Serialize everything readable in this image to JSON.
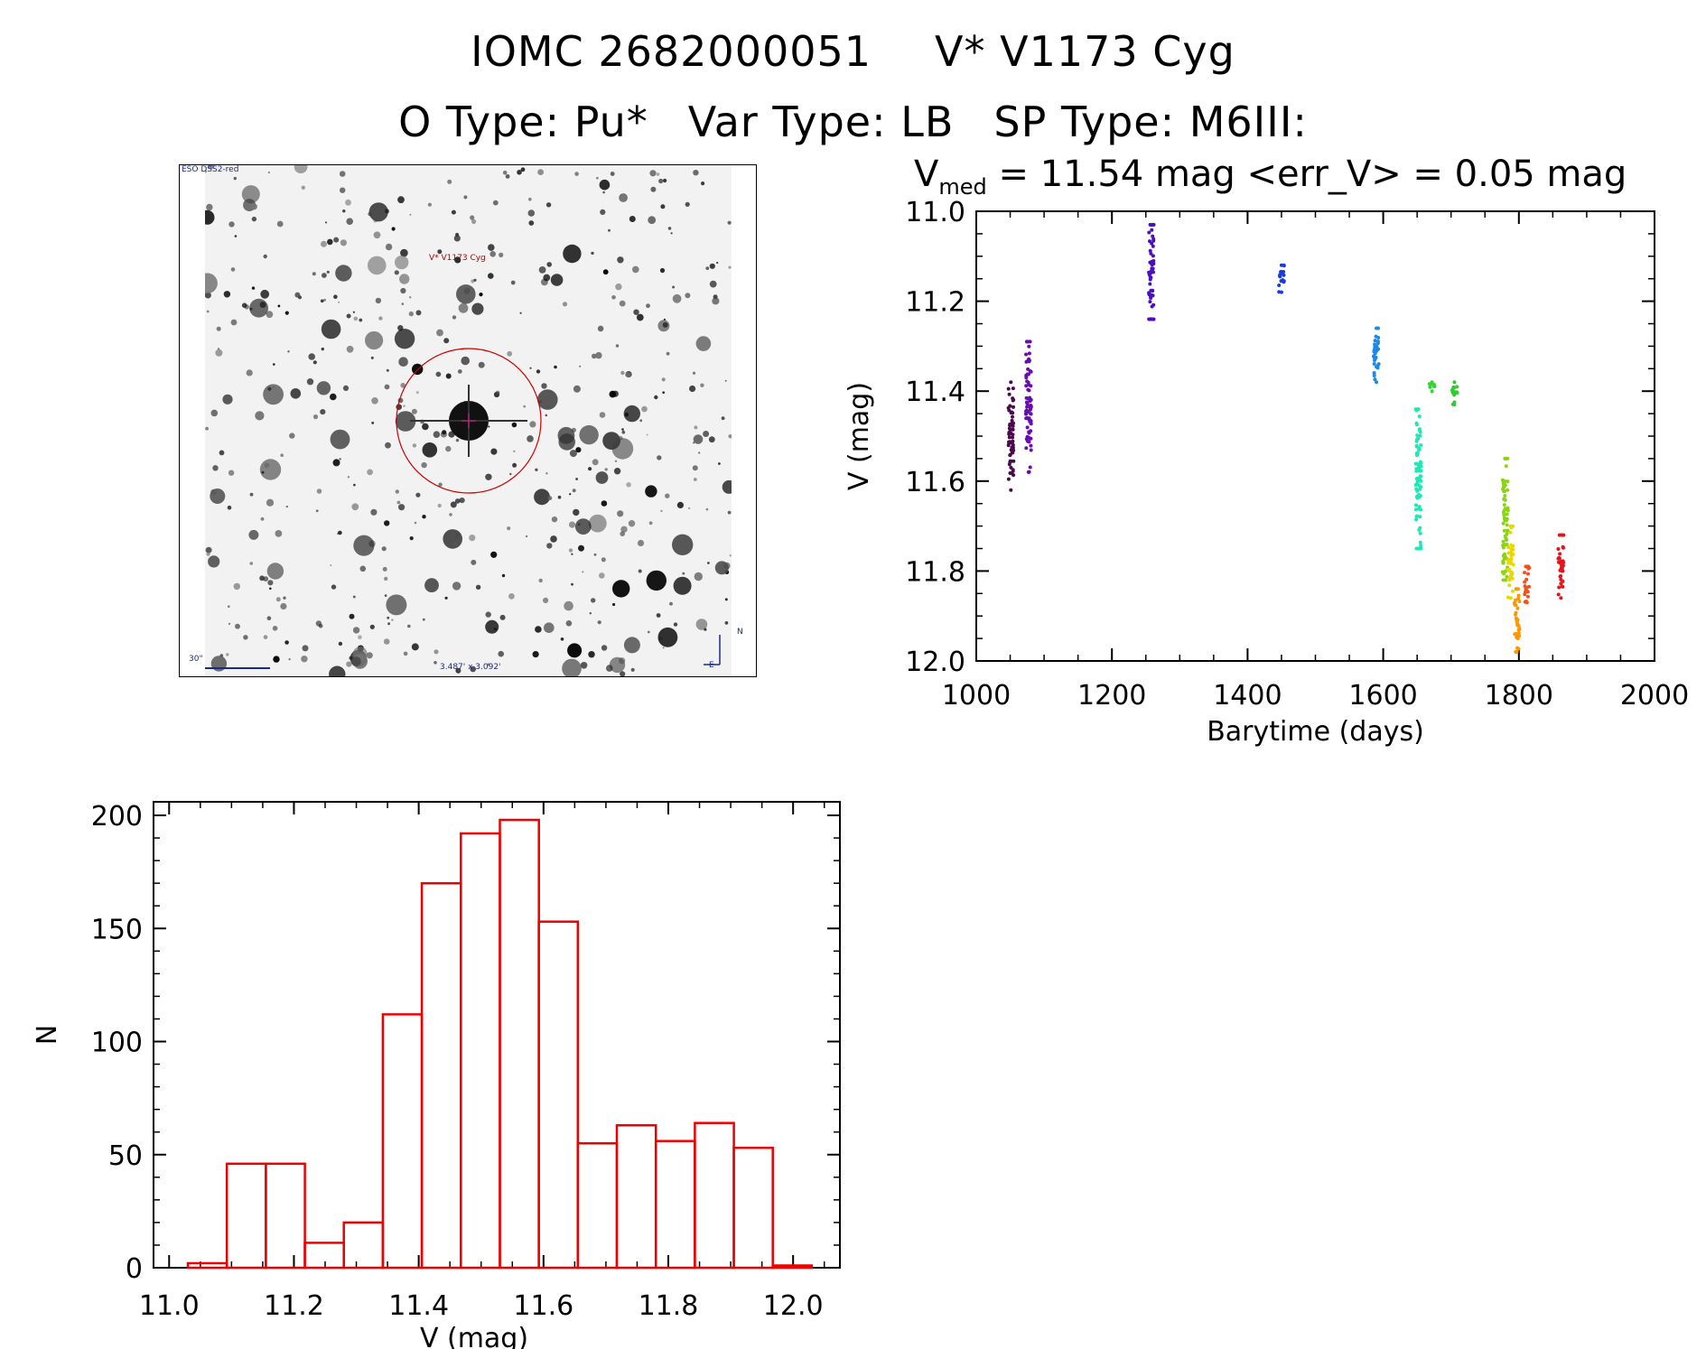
{
  "header": {
    "title_id": "IOMC 2682000051",
    "title_name": "V* V1173 Cyg",
    "otype": "O Type: Pu*",
    "vartype": "Var Type: LB",
    "sptype": "SP Type: M6III:"
  },
  "finder": {
    "corner_label": "ESO DSS2-red",
    "star_label": "V* V1173 Cyg",
    "scale_label": "30\"",
    "coords_label": "3.487' x 3.092'",
    "north_label": "N",
    "east_label": "E"
  },
  "lightcurve": {
    "subtitle_v": "V",
    "subtitle_sub": "med",
    "subtitle_rest": " = 11.54 mag <err_V> = 0.05 mag"
  },
  "chart_data": [
    {
      "type": "scatter",
      "xlabel": "Barytime (days)",
      "ylabel": "V (mag)",
      "xlim": [
        1000,
        2000
      ],
      "ylim": [
        12.0,
        11.0
      ],
      "y_inverted": true,
      "xticks": [
        "1000",
        "1200",
        "1400",
        "1600",
        "1800",
        "2000"
      ],
      "yticks": [
        "11.0",
        "11.2",
        "11.4",
        "11.6",
        "11.8",
        "12.0"
      ],
      "grid": false,
      "groups": [
        {
          "x": 1051,
          "y_min": 11.38,
          "y_max": 11.62,
          "color": "#4b0a4b"
        },
        {
          "x": 1077,
          "y_min": 11.29,
          "y_max": 11.58,
          "color": "#6a0dad"
        },
        {
          "x": 1258,
          "y_min": 11.03,
          "y_max": 11.24,
          "color": "#4a10c0"
        },
        {
          "x": 1450,
          "y_min": 11.12,
          "y_max": 11.18,
          "color": "#1a3cd8"
        },
        {
          "x": 1590,
          "y_min": 11.26,
          "y_max": 11.38,
          "color": "#1e88e5"
        },
        {
          "x": 1652,
          "y_min": 11.44,
          "y_max": 11.75,
          "color": "#1de9b6"
        },
        {
          "x": 1672,
          "y_min": 11.38,
          "y_max": 11.4,
          "color": "#33d433"
        },
        {
          "x": 1705,
          "y_min": 11.38,
          "y_max": 11.43,
          "color": "#2ecc2e"
        },
        {
          "x": 1780,
          "y_min": 11.55,
          "y_max": 11.82,
          "color": "#8ad411"
        },
        {
          "x": 1788,
          "y_min": 11.7,
          "y_max": 11.86,
          "color": "#e6d800"
        },
        {
          "x": 1797,
          "y_min": 11.84,
          "y_max": 11.98,
          "color": "#ff9800"
        },
        {
          "x": 1812,
          "y_min": 11.79,
          "y_max": 11.87,
          "color": "#f4511e"
        },
        {
          "x": 1862,
          "y_min": 11.72,
          "y_max": 11.86,
          "color": "#e5141a"
        }
      ]
    },
    {
      "type": "bar",
      "xlabel": "V (mag)",
      "ylabel": "N",
      "xlim": [
        10.975,
        12.075
      ],
      "ylim": [
        0,
        200
      ],
      "xticks": [
        "11.0",
        "11.2",
        "11.4",
        "11.6",
        "11.8",
        "12.0"
      ],
      "yticks": [
        "0",
        "50",
        "100",
        "150",
        "200"
      ],
      "bin_width": 0.0625,
      "bin_starts": [
        11.03,
        11.0925,
        11.155,
        11.2175,
        11.28,
        11.3425,
        11.405,
        11.4675,
        11.53,
        11.5925,
        11.655,
        11.7175,
        11.78,
        11.8425,
        11.905,
        11.9675
      ],
      "values": [
        2,
        46,
        46,
        11,
        20,
        112,
        170,
        192,
        198,
        153,
        55,
        63,
        56,
        64,
        53,
        1
      ],
      "color": "#ee0000"
    }
  ]
}
